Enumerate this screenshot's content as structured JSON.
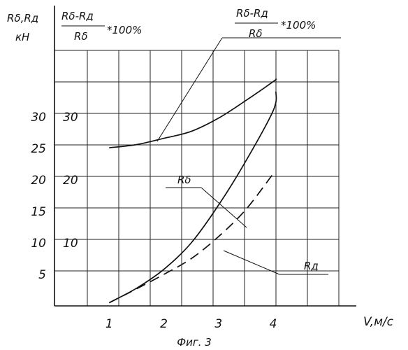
{
  "chart_data": {
    "type": "line",
    "caption": "Фиг. 3",
    "xlabel": "V,м/с",
    "x_ticks": [
      "1",
      "2",
      "3",
      "4"
    ],
    "xlim": [
      0,
      5.2
    ],
    "left_axis": {
      "label_line1": "Rδ,Rд",
      "label_line2": "кН",
      "ticks": [
        "5",
        "10",
        "15",
        "20",
        "25",
        "30"
      ],
      "ylim": [
        0,
        38
      ]
    },
    "right_axis": {
      "label_numerator": "Rδ-Rд",
      "label_denominator": "Rδ",
      "label_suffix": "*100%",
      "ticks": [
        "10",
        "20",
        "30"
      ]
    },
    "series": [
      {
        "name": "Rδ-Rд / Rδ *100%",
        "axis": "right",
        "style": "solid",
        "x": [
          1.0,
          1.5,
          2.0,
          2.5,
          3.0,
          3.5,
          4.0,
          4.05
        ],
        "y": [
          25.1,
          25.6,
          26.6,
          27.7,
          29.8,
          32.6,
          35.6,
          36.0
        ]
      },
      {
        "name": "Rδ",
        "axis": "left",
        "style": "solid",
        "x": [
          1.0,
          1.5,
          2.0,
          2.5,
          3.0,
          3.5,
          4.0,
          4.05
        ],
        "y": [
          0.5,
          2.8,
          5.8,
          10.0,
          16.0,
          23.0,
          31.0,
          34.0
        ]
      },
      {
        "name": "Rд",
        "axis": "left",
        "style": "dashed",
        "x": [
          1.0,
          1.5,
          2.0,
          2.5,
          3.0,
          3.5,
          4.0
        ],
        "y": [
          0.5,
          2.7,
          5.0,
          7.5,
          11.0,
          15.3,
          21.0
        ]
      }
    ],
    "annotations": {
      "top_label_numerator": "Rδ-Rд",
      "top_label_denominator": "Rδ",
      "top_label_suffix": "*100%",
      "rb_label": "Rδ",
      "rd_label": "Rд"
    }
  }
}
